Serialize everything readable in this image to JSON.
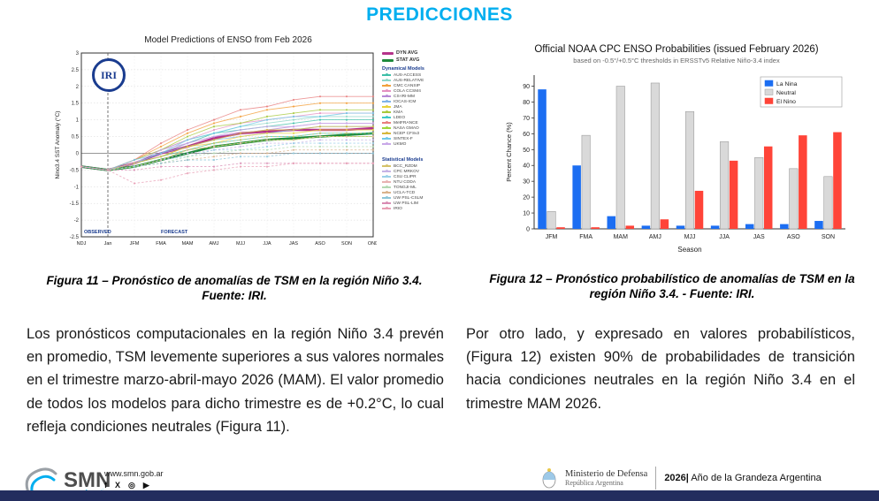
{
  "title": "PREDICCIONES",
  "colors": {
    "title": "#00AEEF",
    "accent_navy": "#1A3C8F",
    "footer_bar": "#232D5E",
    "la_nina": "#1C6EF2",
    "neutral": "#D9D9D9",
    "el_nino": "#FF4438",
    "dyn_avg": "#B5338A",
    "stat_avg": "#1E8A3C"
  },
  "figures": {
    "fig11_caption": "Figura 11 – Pronóstico de anomalías de TSM en la región Niño 3.4. Fuente: IRI.",
    "fig12_caption": "Figura 12 – Pronóstico probabilístico de anomalías de TSM en la región Niño 3.4. - Fuente: IRI."
  },
  "paragraphs": {
    "left": "Los pronósticos computacionales en la región Niño 3.4 prevén en promedio, TSM levemente superiores a sus valores normales en el trimestre marzo-abril-mayo 2026 (MAM). El valor promedio de todos los modelos para dicho trimestre es de +0.2°C, lo cual refleja condiciones neutrales (Figura 11).",
    "right": "Por otro lado, y expresado en valores probabilísticos, (Figura 12) existen 90% de probabilidades de transición hacia condiciones neutrales en la región Niño 3.4 en el trimestre MAM 2026."
  },
  "footer": {
    "smn_name": "SMN",
    "smn_country": "Argentina",
    "website": "www.smn.gob.ar",
    "social": [
      {
        "name": "facebook-icon",
        "glyph": "f"
      },
      {
        "name": "x-icon",
        "glyph": "X"
      },
      {
        "name": "instagram-icon",
        "glyph": "◎"
      },
      {
        "name": "youtube-icon",
        "glyph": "▶"
      }
    ],
    "ministry_line1": "Ministerio de Defensa",
    "ministry_line2": "República Argentina",
    "year": "2026|",
    "slogan": " Año de la Grandeza Argentina"
  },
  "chart_data": [
    {
      "type": "line",
      "title": "Model Predictions of ENSO from Feb 2026",
      "logo": "IRI",
      "ylabel": "Nino3.4 SST Anomaly (°C)",
      "ylim": [
        -2.5,
        3
      ],
      "ytick_step": 0.5,
      "x": [
        "NDJ",
        "Jan",
        "JFM",
        "FMA",
        "MAM",
        "AMJ",
        "MJJ",
        "JJA",
        "JAS",
        "ASO",
        "SON",
        "OND"
      ],
      "observed_label": "OBSERVED",
      "forecast_label": "FORECAST",
      "forecast_start_index": 1,
      "legend_groups": [
        {
          "id": "dyn",
          "header": "Dynamical Models"
        },
        {
          "id": "stat",
          "header": "Statistical Models"
        }
      ],
      "series": [
        {
          "name": "OBSERVED",
          "group": "obs",
          "color": "#111111",
          "width": 1.6,
          "bold": true,
          "values": [
            -0.4,
            -0.5,
            null,
            null,
            null,
            null,
            null,
            null,
            null,
            null,
            null,
            null
          ]
        },
        {
          "name": "DYN AVG",
          "group": "avg",
          "color": "#B5338A",
          "width": 2.6,
          "bold": true,
          "values": [
            -0.4,
            -0.5,
            -0.3,
            0,
            0.2,
            0.45,
            0.6,
            0.65,
            0.7,
            0.7,
            0.7,
            0.75
          ]
        },
        {
          "name": "STAT AVG",
          "group": "avg",
          "color": "#1E8A3C",
          "width": 2.6,
          "bold": true,
          "values": [
            -0.4,
            -0.5,
            -0.4,
            -0.2,
            0,
            0.2,
            0.3,
            0.4,
            0.45,
            0.5,
            0.55,
            0.6
          ]
        },
        {
          "name": "AUS-ACCESS",
          "group": "dyn",
          "color": "#3DBFA8",
          "values": [
            -0.4,
            -0.5,
            -0.3,
            0,
            0.3,
            0.6,
            0.7,
            0.8,
            0.9,
            1,
            1,
            1
          ]
        },
        {
          "name": "AUS-RELATIVE",
          "group": "dyn",
          "color": "#8FD6C8",
          "values": [
            -0.4,
            -0.5,
            -0.3,
            0.1,
            0.4,
            0.6,
            0.8,
            0.9,
            1,
            1.1,
            1.1,
            1.1
          ]
        },
        {
          "name": "CMC CANSIP",
          "group": "dyn",
          "color": "#F2A03D",
          "values": [
            -0.4,
            -0.5,
            -0.2,
            0.2,
            0.6,
            0.9,
            1.1,
            1.3,
            1.4,
            1.5,
            1.5,
            1.5
          ]
        },
        {
          "name": "COLA CCSM4",
          "group": "dyn",
          "color": "#E48FC0",
          "values": [
            -0.4,
            -0.5,
            -0.2,
            0.1,
            0.4,
            0.7,
            0.9,
            1,
            1.1,
            1.2,
            1.2,
            1.2
          ]
        },
        {
          "name": "CS-IRI-MM",
          "group": "dyn",
          "color": "#B789D6",
          "values": [
            -0.4,
            -0.5,
            -0.3,
            0,
            0.3,
            0.5,
            0.6,
            0.7,
            0.8,
            0.9,
            0.9,
            0.9
          ]
        },
        {
          "name": "IOCAS-ICM",
          "group": "dyn",
          "color": "#7FB3E8",
          "values": [
            -0.4,
            -0.5,
            -0.3,
            0,
            0.2,
            0.4,
            0.5,
            0.6,
            0.7,
            0.8,
            0.8,
            0.8
          ]
        },
        {
          "name": "JMA",
          "group": "dyn",
          "color": "#E8D23D",
          "values": [
            -0.4,
            -0.5,
            -0.3,
            -0.1,
            0.2,
            0.3,
            0.5,
            0.6,
            0.6,
            0.7,
            0.7,
            0.7
          ]
        },
        {
          "name": "KMA",
          "group": "dyn",
          "color": "#A8C93D",
          "values": [
            -0.4,
            -0.5,
            -0.2,
            0.1,
            0.5,
            0.8,
            0.9,
            1.1,
            1.2,
            1.3,
            1.3,
            1.3
          ]
        },
        {
          "name": "LDEO",
          "group": "dyn",
          "color": "#3DC9C9",
          "values": [
            -0.4,
            -0.5,
            -0.3,
            -0.1,
            0.1,
            0.3,
            0.4,
            0.5,
            0.5,
            0.6,
            0.6,
            0.6
          ]
        },
        {
          "name": "MetFRANCE",
          "group": "dyn",
          "color": "#E87F7F",
          "values": [
            -0.4,
            -0.5,
            -0.2,
            0.3,
            0.7,
            1,
            1.3,
            1.4,
            1.6,
            1.7,
            1.7,
            1.7
          ]
        },
        {
          "name": "NASA GMAO",
          "group": "dyn",
          "color": "#9FD63D",
          "values": [
            -0.4,
            -0.5,
            -0.4,
            -0.2,
            0.1,
            0.2,
            0.3,
            0.4,
            0.4,
            0.5,
            0.5,
            0.5
          ]
        },
        {
          "name": "NCEP CFSv2",
          "group": "dyn",
          "color": "#D6B83D",
          "values": [
            -0.4,
            -0.5,
            -0.3,
            -0.1,
            0.2,
            0.4,
            0.6,
            0.7,
            0.7,
            0.8,
            0.8,
            0.8
          ]
        },
        {
          "name": "SINTEX-F",
          "group": "dyn",
          "color": "#6FC9E8",
          "values": [
            -0.4,
            -0.5,
            -0.2,
            0,
            0.4,
            0.6,
            0.8,
            1,
            1.1,
            1.1,
            1.2,
            1.2
          ]
        },
        {
          "name": "UKMO",
          "group": "dyn",
          "color": "#C9A8E8",
          "values": [
            -0.4,
            -0.5,
            -0.3,
            0.1,
            0.3,
            0.5,
            0.7,
            0.8,
            0.8,
            0.9,
            0.9,
            0.9
          ]
        },
        {
          "name": "BCC_RZDM",
          "group": "stat",
          "color": "#D4C26A",
          "dashed": true,
          "values": [
            -0.4,
            -0.5,
            -0.3,
            -0.1,
            0.1,
            0.3,
            0.4,
            0.5,
            0.5,
            0.6,
            0.6,
            0.6
          ]
        },
        {
          "name": "CPC MRKOV",
          "group": "stat",
          "color": "#C5B3E6",
          "dashed": true,
          "values": [
            -0.4,
            -0.5,
            -0.4,
            -0.2,
            0,
            0.1,
            0.2,
            0.3,
            0.3,
            0.4,
            0.4,
            0.4
          ]
        },
        {
          "name": "CSU CLIPR",
          "group": "stat",
          "color": "#9AD1E8",
          "dashed": true,
          "values": [
            -0.4,
            -0.5,
            -0.4,
            -0.2,
            -0.1,
            0.1,
            0.1,
            0.2,
            0.3,
            0.3,
            0.3,
            0.3
          ]
        },
        {
          "name": "NTU CODA",
          "group": "stat",
          "color": "#E8B3B3",
          "dashed": true,
          "values": [
            -0.4,
            -0.5,
            -0.4,
            -0.2,
            0.1,
            0.2,
            0.3,
            0.4,
            0.4,
            0.5,
            0.5,
            0.5
          ]
        },
        {
          "name": "TONGJI-ML",
          "group": "stat",
          "color": "#B3D9B3",
          "dashed": true,
          "values": [
            -0.4,
            -0.5,
            -0.4,
            -0.3,
            -0.1,
            0,
            0.1,
            0.1,
            0.2,
            0.2,
            0.2,
            0.2
          ]
        },
        {
          "name": "UCLA-TCD",
          "group": "stat",
          "color": "#D9B38C",
          "dashed": true,
          "values": [
            -0.4,
            -0.5,
            -0.4,
            -0.3,
            -0.2,
            -0.1,
            0,
            0,
            0.1,
            0.1,
            0.1,
            0.1
          ]
        },
        {
          "name": "UW PSL-CSLM",
          "group": "stat",
          "color": "#8CC6D9",
          "dashed": true,
          "values": [
            -0.4,
            -0.5,
            -0.4,
            -0.3,
            -0.2,
            -0.2,
            -0.1,
            -0.1,
            0,
            0,
            0,
            0
          ]
        },
        {
          "name": "UW PSL-LIM",
          "group": "stat",
          "color": "#D98CB3",
          "dashed": true,
          "values": [
            -0.4,
            -0.5,
            -0.5,
            -0.4,
            -0.4,
            -0.4,
            -0.3,
            -0.3,
            -0.3,
            -0.3,
            -0.3,
            -0.3
          ]
        },
        {
          "name": "IRIO",
          "group": "stat",
          "color": "#E89FB5",
          "dashed": true,
          "values": [
            -0.4,
            -0.5,
            -0.9,
            -0.8,
            -0.6,
            -0.5,
            -0.4,
            -0.4,
            -0.3,
            -0.3,
            -0.3,
            -0.3
          ]
        }
      ]
    },
    {
      "type": "bar",
      "title": "Official NOAA CPC ENSO Probabilities (issued February 2026)",
      "subtitle": "based on -0.5°/+0.5°C thresholds in ERSSTv5 Relative Niño-3.4 index",
      "xlabel": "Season",
      "ylabel": "Percent Chance (%)",
      "ylim": [
        0,
        100
      ],
      "yticks": [
        0,
        10,
        20,
        30,
        40,
        50,
        60,
        70,
        80,
        90
      ],
      "categories": [
        "JFM",
        "FMA",
        "MAM",
        "AMJ",
        "MJJ",
        "JJA",
        "JAS",
        "ASO",
        "SON"
      ],
      "legend_position": "upper-right",
      "series": [
        {
          "name": "La Nina",
          "color": "#1C6EF2",
          "values": [
            88,
            40,
            8,
            2,
            2,
            2,
            3,
            3,
            5
          ]
        },
        {
          "name": "Neutral",
          "color": "#D9D9D9",
          "border": "#9E9E9E",
          "values": [
            11,
            59,
            90,
            92,
            74,
            55,
            45,
            38,
            33
          ]
        },
        {
          "name": "El Nino",
          "color": "#FF4438",
          "values": [
            1,
            1,
            2,
            6,
            24,
            43,
            52,
            59,
            61
          ]
        }
      ]
    }
  ]
}
